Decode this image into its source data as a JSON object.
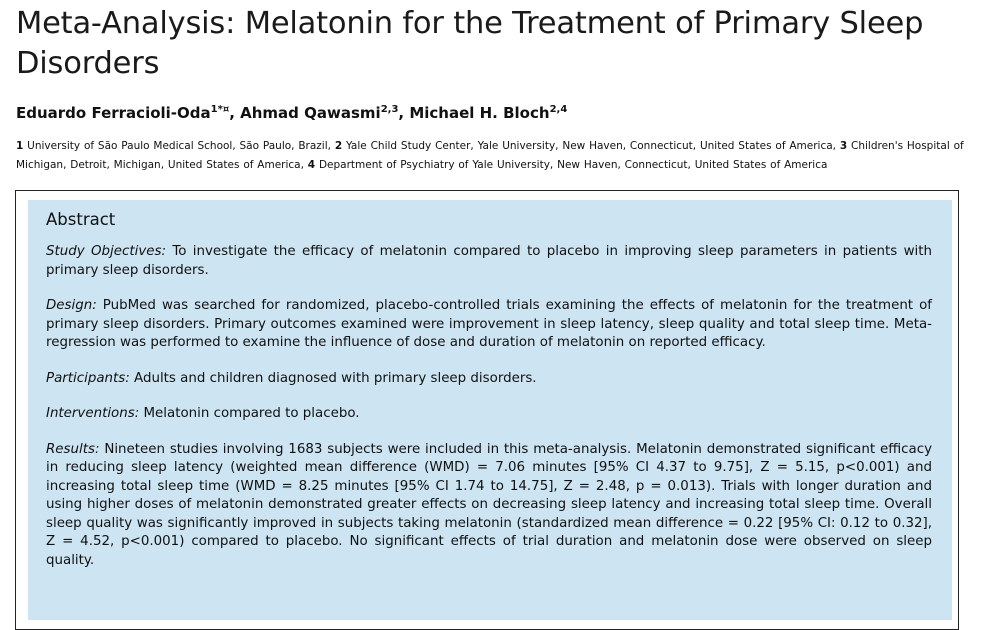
{
  "title": "Meta-Analysis: Melatonin for the Treatment of Primary Sleep Disorders",
  "authors": [
    {
      "name": "Eduardo Ferracioli-Oda",
      "sup": "1*¤",
      "sep": ", "
    },
    {
      "name": "Ahmad Qawasmi",
      "sup": "2,3",
      "sep": ", "
    },
    {
      "name": "Michael H. Bloch",
      "sup": "2,4",
      "sep": ""
    }
  ],
  "affiliations": [
    {
      "num": "1",
      "text": "University of São Paulo Medical School, São Paulo, Brazil, "
    },
    {
      "num": "2",
      "text": "Yale Child Study Center, Yale University, New Haven, Connecticut, United States of America, "
    },
    {
      "num": "3",
      "text": "Children's Hospital of Michigan, Detroit, Michigan, United States of America, "
    },
    {
      "num": "4",
      "text": "Department of Psychiatry of Yale University, New Haven, Connecticut, United States of America"
    }
  ],
  "abstract": {
    "heading": "Abstract",
    "sections": [
      {
        "label": "Study Objectives:",
        "text": "To investigate the efficacy of melatonin compared to placebo in improving sleep parameters in patients with primary sleep disorders."
      },
      {
        "label": "Design:",
        "text": "PubMed was searched for randomized, placebo-controlled trials examining the effects of melatonin for the treatment of primary sleep disorders. Primary outcomes examined were improvement in sleep latency, sleep quality and total sleep time. Meta-regression was performed to examine the influence of dose and duration of melatonin on reported efficacy."
      },
      {
        "label": "Participants:",
        "text": "Adults and children diagnosed with primary sleep disorders."
      },
      {
        "label": "Interventions:",
        "text": "Melatonin compared to placebo."
      },
      {
        "label": "Results:",
        "text": "Nineteen studies involving 1683 subjects were included in this meta-analysis. Melatonin demonstrated significant efficacy in reducing sleep latency (weighted mean difference (WMD) = 7.06 minutes [95% CI 4.37 to 9.75], Z = 5.15, p<0.001) and increasing total sleep time (WMD = 8.25 minutes [95% CI 1.74 to 14.75], Z = 2.48, p = 0.013). Trials with longer duration and using higher doses of melatonin demonstrated greater effects on decreasing sleep latency and increasing total sleep time. Overall sleep quality was significantly improved in subjects taking melatonin (standardized mean difference = 0.22 [95% CI: 0.12 to 0.32], Z = 4.52, p<0.001) compared to placebo. No significant effects of trial duration and melatonin dose were observed on sleep quality."
      }
    ]
  },
  "colors": {
    "abstract_bg": "#cde4f2",
    "frame_border": "#222222",
    "text": "#111111"
  }
}
